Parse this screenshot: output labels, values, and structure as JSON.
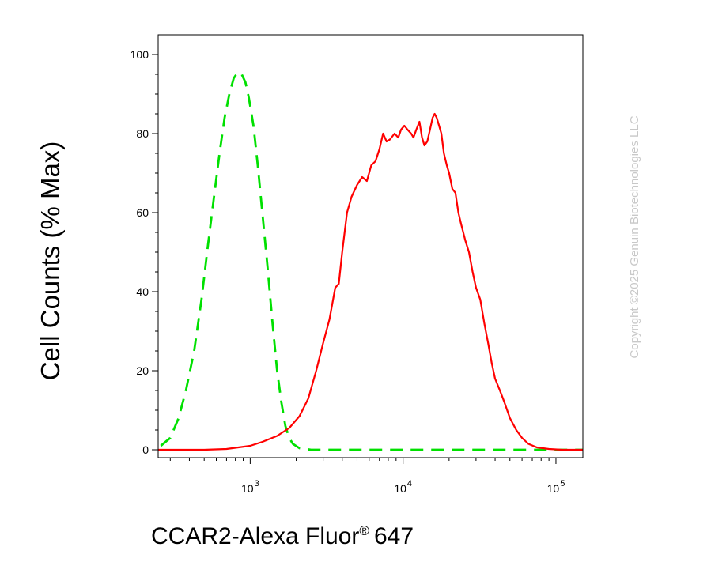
{
  "chart_data": {
    "type": "line",
    "xlabel": "CCAR2-Alexa Fluor",
    "xlabel_mark": "®",
    "xlabel_suffix": "647",
    "ylabel": "Cell Counts (% Max)",
    "x_scale": "log",
    "xlim": [
      250,
      150000
    ],
    "ylim": [
      -2,
      105
    ],
    "yticks": [
      "0",
      "20",
      "40",
      "60",
      "80",
      "100"
    ],
    "xticks": [
      {
        "base": "10",
        "exp": "3",
        "value": 1000
      },
      {
        "base": "10",
        "exp": "4",
        "value": 10000
      },
      {
        "base": "10",
        "exp": "5",
        "value": 100000
      }
    ],
    "grid": false,
    "series": [
      {
        "color": "#00e000",
        "style": "dashed",
        "points": [
          [
            260,
            1
          ],
          [
            300,
            3
          ],
          [
            340,
            8
          ],
          [
            380,
            15
          ],
          [
            430,
            25
          ],
          [
            480,
            38
          ],
          [
            530,
            52
          ],
          [
            580,
            64
          ],
          [
            630,
            75
          ],
          [
            680,
            84
          ],
          [
            730,
            90
          ],
          [
            780,
            94
          ],
          [
            830,
            95.5
          ],
          [
            880,
            95
          ],
          [
            930,
            93
          ],
          [
            980,
            89
          ],
          [
            1050,
            82
          ],
          [
            1120,
            72
          ],
          [
            1200,
            60
          ],
          [
            1300,
            46
          ],
          [
            1400,
            32
          ],
          [
            1500,
            20
          ],
          [
            1600,
            12
          ],
          [
            1700,
            6
          ],
          [
            1800,
            3
          ],
          [
            1900,
            1.5
          ],
          [
            2100,
            0.4
          ],
          [
            2500,
            0
          ],
          [
            5000,
            0
          ],
          [
            20000,
            0
          ],
          [
            100000,
            0
          ],
          [
            150000,
            0
          ]
        ]
      },
      {
        "color": "#ff0000",
        "style": "solid",
        "points": [
          [
            250,
            0
          ],
          [
            500,
            0
          ],
          [
            700,
            0.2
          ],
          [
            1000,
            1
          ],
          [
            1200,
            2
          ],
          [
            1500,
            3.5
          ],
          [
            1800,
            5.5
          ],
          [
            2100,
            8.5
          ],
          [
            2400,
            13
          ],
          [
            2700,
            20
          ],
          [
            3000,
            27
          ],
          [
            3300,
            33
          ],
          [
            3600,
            41
          ],
          [
            3800,
            42
          ],
          [
            4000,
            50
          ],
          [
            4300,
            60
          ],
          [
            4600,
            64
          ],
          [
            5000,
            67
          ],
          [
            5400,
            69
          ],
          [
            5800,
            68
          ],
          [
            6200,
            72
          ],
          [
            6600,
            73
          ],
          [
            7000,
            76
          ],
          [
            7400,
            80
          ],
          [
            7800,
            78
          ],
          [
            8200,
            78.5
          ],
          [
            8800,
            80
          ],
          [
            9300,
            79
          ],
          [
            9700,
            81
          ],
          [
            10200,
            82
          ],
          [
            10700,
            81
          ],
          [
            11300,
            80
          ],
          [
            11700,
            79
          ],
          [
            12200,
            81
          ],
          [
            12800,
            83
          ],
          [
            13300,
            79
          ],
          [
            13800,
            77
          ],
          [
            14400,
            78
          ],
          [
            15000,
            81
          ],
          [
            15600,
            84
          ],
          [
            16100,
            85
          ],
          [
            16600,
            84
          ],
          [
            17200,
            82
          ],
          [
            17800,
            80
          ],
          [
            18500,
            75
          ],
          [
            19300,
            72
          ],
          [
            20000,
            70
          ],
          [
            21000,
            66
          ],
          [
            22000,
            65
          ],
          [
            23000,
            60
          ],
          [
            24000,
            57
          ],
          [
            25500,
            53
          ],
          [
            27000,
            50
          ],
          [
            28500,
            45
          ],
          [
            30000,
            41
          ],
          [
            32000,
            38
          ],
          [
            34000,
            32
          ],
          [
            36000,
            27
          ],
          [
            38000,
            22
          ],
          [
            40000,
            18
          ],
          [
            43000,
            15
          ],
          [
            46000,
            12
          ],
          [
            50000,
            8
          ],
          [
            55000,
            5
          ],
          [
            60000,
            3
          ],
          [
            66000,
            1.5
          ],
          [
            75000,
            0.6
          ],
          [
            90000,
            0.2
          ],
          [
            110000,
            0
          ],
          [
            150000,
            0
          ]
        ]
      }
    ]
  },
  "watermark": "Copyright ©2025 Genuin Biotechnologies LLC"
}
